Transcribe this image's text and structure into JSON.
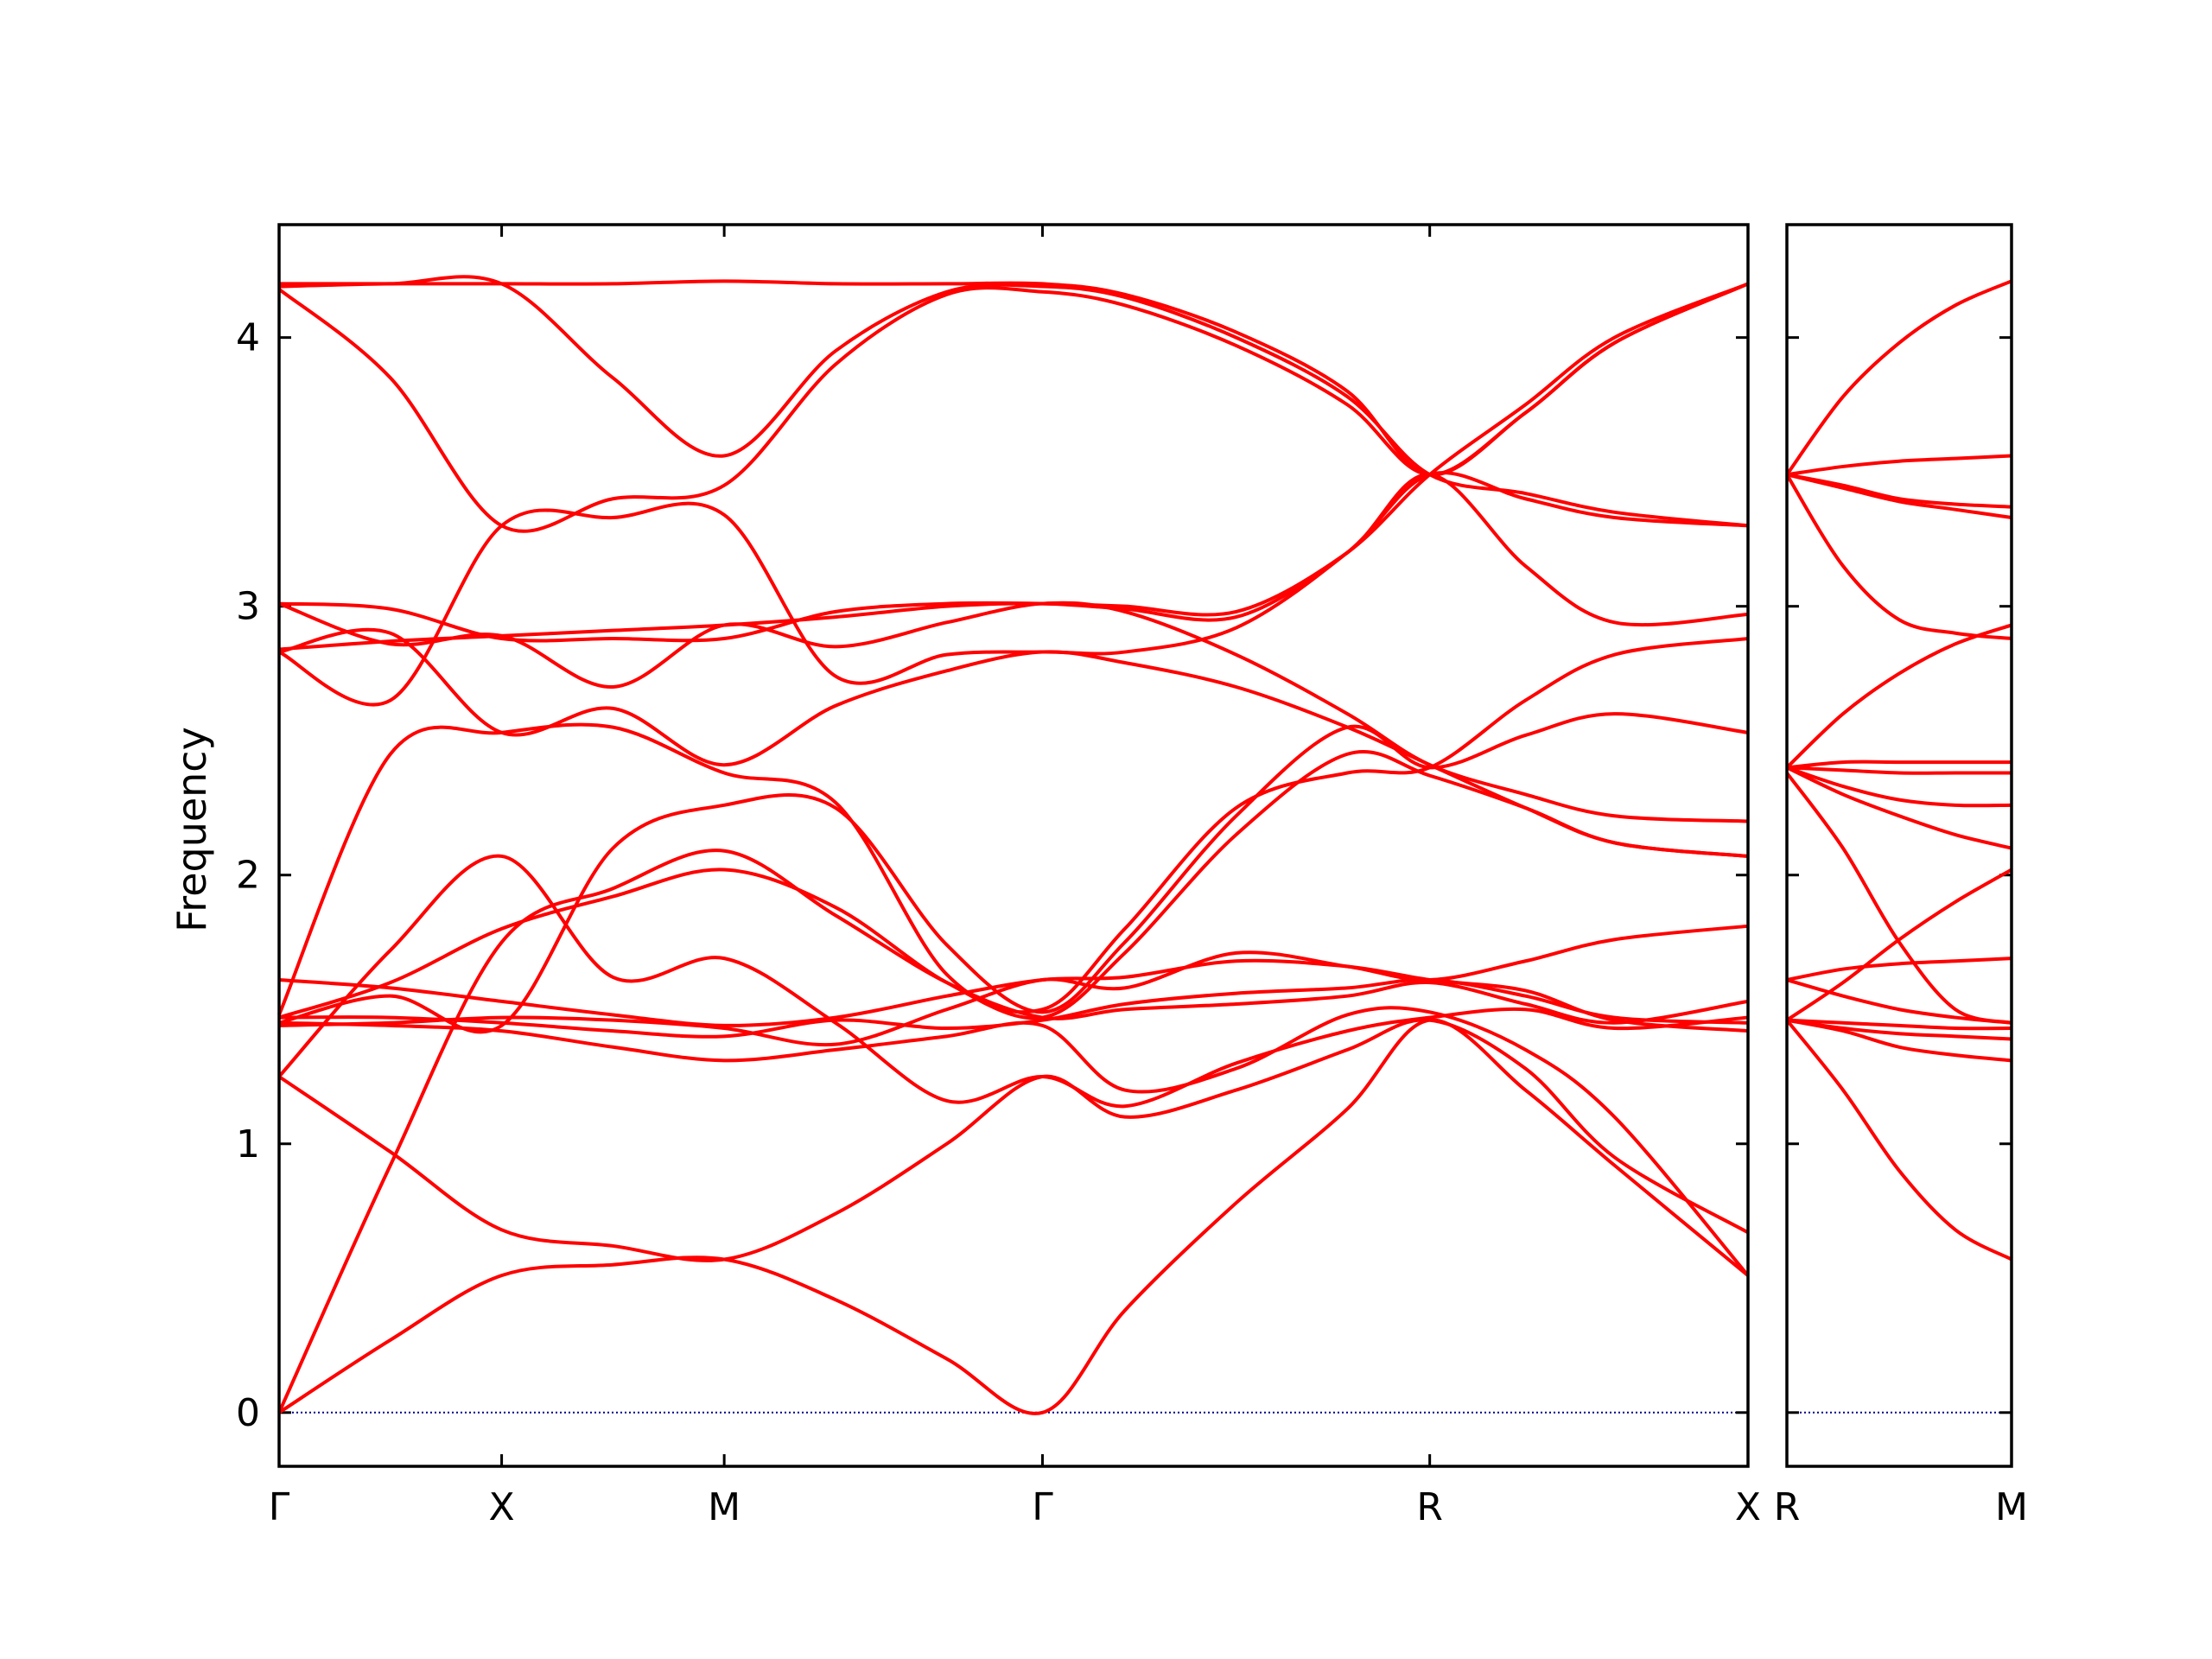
{
  "chart_data": {
    "type": "line",
    "title": "",
    "ylabel": "Frequency",
    "ylim": [
      -0.2,
      4.42
    ],
    "yticks": [
      0,
      1,
      2,
      3,
      4
    ],
    "grid": false,
    "line_color": "#ff0000",
    "zero_line_color": "#00008b",
    "panels": [
      {
        "id": "left",
        "xlim": [
          0,
          6.6
        ],
        "ticks": [
          {
            "x": 0,
            "label": "Γ"
          },
          {
            "x": 1.0,
            "label": "X"
          },
          {
            "x": 2.0,
            "label": "M"
          },
          {
            "x": 3.43,
            "label": "Γ"
          },
          {
            "x": 5.17,
            "label": "R"
          },
          {
            "x": 6.6,
            "label": "X"
          }
        ],
        "series": [
          {
            "x": [
              0,
              0.5,
              1.0,
              1.5,
              2.0,
              2.5,
              3.0,
              3.43,
              3.8,
              4.3,
              4.8,
              5.17,
              5.6,
              6.0,
              6.6
            ],
            "y": [
              0.0,
              0.27,
              0.51,
              0.55,
              0.57,
              0.42,
              0.2,
              0.0,
              0.38,
              0.78,
              1.13,
              1.46,
              1.2,
              0.92,
              0.51
            ]
          },
          {
            "x": [
              0,
              0.5,
              1.0,
              1.5,
              2.0,
              2.5,
              3.0,
              3.43,
              3.8,
              4.3,
              4.8,
              5.17,
              5.6,
              6.0,
              6.6
            ],
            "y": [
              0.0,
              0.92,
              1.75,
              1.95,
              2.09,
              1.85,
              1.6,
              1.47,
              1.5,
              1.52,
              1.55,
              1.6,
              1.52,
              1.45,
              1.53
            ]
          },
          {
            "x": [
              0,
              0.5,
              1.0,
              1.5,
              2.0,
              2.5,
              3.0,
              3.43,
              3.8,
              4.3,
              4.8,
              5.17,
              5.6,
              6.0,
              6.6
            ],
            "y": [
              1.25,
              0.97,
              0.68,
              0.62,
              0.57,
              0.74,
              1.0,
              1.25,
              1.1,
              1.2,
              1.35,
              1.46,
              1.28,
              0.95,
              0.67
            ]
          },
          {
            "x": [
              0,
              0.5,
              1.0,
              1.5,
              2.0,
              2.5,
              3.0,
              3.43,
              3.8,
              4.3,
              4.8,
              5.17,
              5.6,
              6.0,
              6.6
            ],
            "y": [
              1.45,
              1.44,
              1.42,
              1.36,
              1.31,
              1.35,
              1.4,
              1.44,
              1.2,
              1.28,
              1.48,
              1.49,
              1.35,
              1.1,
              0.51
            ]
          },
          {
            "x": [
              0,
              0.5,
              1.0,
              1.5,
              2.0,
              2.5,
              3.0,
              3.43,
              3.8,
              4.3,
              4.8,
              5.17,
              5.6,
              6.0,
              6.6
            ],
            "y": [
              1.47,
              1.47,
              1.45,
              1.42,
              1.4,
              1.46,
              1.43,
              1.46,
              1.52,
              1.56,
              1.58,
              1.61,
              1.55,
              1.47,
              1.45
            ]
          },
          {
            "x": [
              0,
              0.5,
              1.0,
              1.5,
              2.0,
              2.5,
              3.0,
              3.43,
              3.8,
              4.3,
              4.8,
              5.17,
              5.6,
              6.0,
              6.6
            ],
            "y": [
              1.61,
              1.58,
              1.53,
              1.48,
              1.44,
              1.47,
              1.55,
              1.61,
              1.62,
              1.68,
              1.66,
              1.61,
              1.57,
              1.46,
              1.42
            ]
          },
          {
            "x": [
              0,
              0.5,
              1.0,
              1.5,
              2.0,
              2.5,
              3.0,
              3.43,
              3.8,
              4.3,
              4.8,
              5.17,
              5.6,
              6.0,
              6.6
            ],
            "y": [
              1.25,
              1.72,
              2.07,
              1.62,
              1.69,
              1.45,
              1.16,
              1.25,
              1.14,
              1.3,
              1.42,
              1.47,
              1.5,
              1.43,
              1.47
            ]
          },
          {
            "x": [
              0,
              0.5,
              1.0,
              1.5,
              2.0,
              2.5,
              3.0,
              3.43,
              3.8,
              4.3,
              4.8,
              5.17,
              5.6,
              6.0,
              6.6
            ],
            "y": [
              1.44,
              1.45,
              1.47,
              1.46,
              1.43,
              1.37,
              1.5,
              1.61,
              1.58,
              1.71,
              1.66,
              1.61,
              1.68,
              1.76,
              1.81
            ]
          },
          {
            "x": [
              0,
              0.5,
              1.0,
              1.5,
              2.0,
              2.5,
              3.0,
              3.43,
              3.8,
              4.3,
              4.8,
              5.17,
              5.6,
              6.0,
              6.6
            ],
            "y": [
              1.47,
              1.6,
              1.8,
              1.92,
              2.02,
              1.88,
              1.6,
              1.47,
              1.71,
              2.15,
              2.45,
              2.37,
              2.25,
              2.12,
              2.07
            ]
          },
          {
            "x": [
              0,
              0.5,
              1.0,
              1.5,
              2.0,
              2.5,
              3.0,
              3.43,
              3.8,
              4.3,
              4.8,
              5.17,
              5.6,
              6.0,
              6.6
            ],
            "y": [
              1.45,
              1.55,
              1.44,
              2.1,
              2.26,
              2.25,
              1.74,
              1.49,
              1.75,
              2.22,
              2.55,
              2.4,
              2.52,
              2.6,
              2.53
            ]
          },
          {
            "x": [
              0,
              0.5,
              1.0,
              1.5,
              2.0,
              2.5,
              3.0,
              3.43,
              3.8,
              4.3,
              4.8,
              5.17,
              5.6,
              6.0,
              6.6
            ],
            "y": [
              1.48,
              2.45,
              2.53,
              2.55,
              2.38,
              2.27,
              1.63,
              1.5,
              1.8,
              2.25,
              2.38,
              2.4,
              2.65,
              2.82,
              2.88
            ]
          },
          {
            "x": [
              0,
              0.5,
              1.0,
              1.5,
              2.0,
              2.5,
              3.0,
              3.43,
              3.8,
              4.3,
              4.8,
              5.17,
              5.6,
              6.0,
              6.6
            ],
            "y": [
              2.83,
              2.65,
              3.3,
              3.33,
              3.34,
              2.74,
              2.82,
              2.83,
              2.83,
              2.92,
              3.2,
              3.49,
              3.4,
              3.33,
              3.3
            ]
          },
          {
            "x": [
              0,
              0.5,
              1.0,
              1.5,
              2.0,
              2.5,
              3.0,
              3.43,
              3.8,
              4.3,
              4.8,
              5.17,
              5.6,
              6.0,
              6.6
            ],
            "y": [
              2.83,
              2.9,
              2.53,
              2.62,
              2.41,
              2.63,
              2.76,
              2.83,
              2.79,
              2.7,
              2.55,
              2.41,
              2.25,
              2.12,
              2.07
            ]
          },
          {
            "x": [
              0,
              0.5,
              1.0,
              1.5,
              2.0,
              2.5,
              3.0,
              3.43,
              3.8,
              4.3,
              4.8,
              5.17,
              5.6,
              6.0,
              6.6
            ],
            "y": [
              3.01,
              2.86,
              2.89,
              2.7,
              2.93,
              2.85,
              2.94,
              3.01,
              2.98,
              2.82,
              2.6,
              2.41,
              2.3,
              2.22,
              2.2
            ]
          },
          {
            "x": [
              0,
              0.5,
              1.0,
              1.5,
              2.0,
              2.5,
              3.0,
              3.43,
              3.8,
              4.3,
              4.8,
              5.17,
              5.6,
              6.0,
              6.6
            ],
            "y": [
              3.01,
              2.99,
              2.88,
              2.88,
              2.88,
              2.98,
              3.01,
              3.01,
              3.0,
              2.98,
              3.2,
              3.49,
              3.15,
              2.94,
              2.97
            ]
          },
          {
            "x": [
              0,
              0.5,
              1.0,
              1.5,
              2.0,
              2.5,
              3.0,
              3.43,
              3.8,
              4.3,
              4.8,
              5.17,
              5.6,
              6.0,
              6.6
            ],
            "y": [
              2.84,
              2.87,
              2.89,
              2.91,
              2.93,
              2.96,
              3.0,
              3.01,
              2.99,
              2.96,
              3.2,
              3.49,
              3.75,
              4.0,
              4.2
            ]
          },
          {
            "x": [
              0,
              0.5,
              1.0,
              1.5,
              2.0,
              2.5,
              3.0,
              3.43,
              3.8,
              4.3,
              4.8,
              5.17,
              5.6,
              6.0,
              6.6
            ],
            "y": [
              4.18,
              3.85,
              3.3,
              3.4,
              3.45,
              3.9,
              4.16,
              4.17,
              4.12,
              3.97,
              3.75,
              3.49,
              3.72,
              3.98,
              4.2
            ]
          },
          {
            "x": [
              0,
              0.5,
              1.0,
              1.5,
              2.0,
              2.5,
              3.0,
              3.43,
              3.8,
              4.3,
              4.8,
              5.17,
              5.6,
              6.0,
              6.6
            ],
            "y": [
              4.19,
              4.2,
              4.2,
              3.85,
              3.56,
              3.95,
              4.17,
              4.19,
              4.15,
              4.0,
              3.78,
              3.49,
              3.42,
              3.35,
              3.3
            ]
          },
          {
            "x": [
              0,
              0.5,
              1.0,
              1.5,
              2.0,
              2.5,
              3.0,
              3.43,
              3.8,
              4.3,
              4.8,
              5.17,
              5.6,
              6.0,
              6.6
            ],
            "y": [
              4.2,
              4.2,
              4.2,
              4.2,
              4.21,
              4.2,
              4.2,
              4.2,
              4.16,
              4.02,
              3.8,
              3.49,
              3.72,
              3.98,
              4.2
            ]
          }
        ]
      },
      {
        "id": "right",
        "xlim": [
          0,
          1
        ],
        "ticks": [
          {
            "x": 0,
            "label": "R"
          },
          {
            "x": 1,
            "label": "M"
          }
        ],
        "series": [
          {
            "x": [
              0,
              0.25,
              0.5,
              0.75,
              1
            ],
            "y": [
              1.46,
              1.2,
              0.9,
              0.68,
              0.57
            ]
          },
          {
            "x": [
              0,
              0.25,
              0.5,
              0.75,
              1
            ],
            "y": [
              1.46,
              1.43,
              1.41,
              1.4,
              1.39
            ]
          },
          {
            "x": [
              0,
              0.25,
              0.5,
              0.75,
              1
            ],
            "y": [
              1.46,
              1.45,
              1.44,
              1.43,
              1.43
            ]
          },
          {
            "x": [
              0,
              0.25,
              0.5,
              0.75,
              1
            ],
            "y": [
              1.46,
              1.42,
              1.36,
              1.33,
              1.31
            ]
          },
          {
            "x": [
              0,
              0.25,
              0.5,
              0.75,
              1
            ],
            "y": [
              1.61,
              1.65,
              1.67,
              1.68,
              1.69
            ]
          },
          {
            "x": [
              0,
              0.25,
              0.5,
              0.75,
              1
            ],
            "y": [
              1.46,
              1.6,
              1.76,
              1.9,
              2.02
            ]
          },
          {
            "x": [
              0,
              0.25,
              0.5,
              0.75,
              1
            ],
            "y": [
              1.61,
              1.55,
              1.5,
              1.47,
              1.45
            ]
          },
          {
            "x": [
              0,
              0.25,
              0.5,
              0.75,
              1
            ],
            "y": [
              2.38,
              2.1,
              1.75,
              1.5,
              1.45
            ]
          },
          {
            "x": [
              0,
              0.25,
              0.5,
              0.75,
              1
            ],
            "y": [
              2.4,
              2.33,
              2.28,
              2.26,
              2.26
            ]
          },
          {
            "x": [
              0,
              0.25,
              0.5,
              0.75,
              1
            ],
            "y": [
              2.4,
              2.39,
              2.38,
              2.38,
              2.38
            ]
          },
          {
            "x": [
              0,
              0.25,
              0.5,
              0.75,
              1
            ],
            "y": [
              2.4,
              2.42,
              2.42,
              2.42,
              2.42
            ]
          },
          {
            "x": [
              0,
              0.25,
              0.5,
              0.75,
              1
            ],
            "y": [
              2.4,
              2.3,
              2.22,
              2.15,
              2.1
            ]
          },
          {
            "x": [
              0,
              0.25,
              0.5,
              0.75,
              1
            ],
            "y": [
              2.4,
              2.6,
              2.75,
              2.86,
              2.93
            ]
          },
          {
            "x": [
              0,
              0.25,
              0.5,
              0.75,
              1
            ],
            "y": [
              3.49,
              3.15,
              2.95,
              2.9,
              2.88
            ]
          },
          {
            "x": [
              0,
              0.25,
              0.5,
              0.75,
              1
            ],
            "y": [
              3.49,
              3.52,
              3.54,
              3.55,
              3.56
            ]
          },
          {
            "x": [
              0,
              0.25,
              0.5,
              0.75,
              1
            ],
            "y": [
              3.49,
              3.44,
              3.39,
              3.36,
              3.33
            ]
          },
          {
            "x": [
              0,
              0.25,
              0.5,
              0.75,
              1
            ],
            "y": [
              3.49,
              3.45,
              3.4,
              3.38,
              3.37
            ]
          },
          {
            "x": [
              0,
              0.25,
              0.5,
              0.75,
              1
            ],
            "y": [
              3.49,
              3.78,
              3.98,
              4.12,
              4.21
            ]
          }
        ]
      }
    ]
  }
}
